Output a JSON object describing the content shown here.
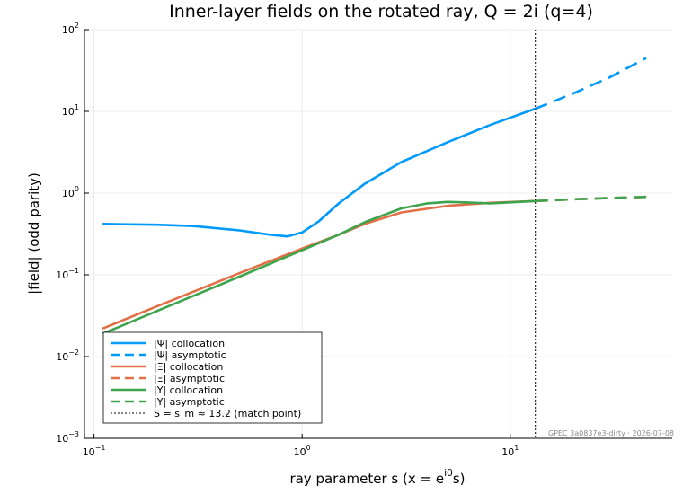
{
  "chart_data": {
    "type": "line",
    "title": "Inner-layer fields on the rotated ray, Q = 2i  (q=4)",
    "xlabel": "ray parameter s   (x = e",
    "xlabel_superscript": "iθ",
    "xlabel_suffix": "s)",
    "ylabel": "|field|  (odd parity)",
    "xscale": "log",
    "yscale": "log",
    "xlim": [
      0.09,
      60
    ],
    "ylim": [
      0.001,
      100
    ],
    "x_ticks": [
      {
        "value": 0.1,
        "base": "10",
        "exp": "−1"
      },
      {
        "value": 1,
        "base": "10",
        "exp": "0"
      },
      {
        "value": 10,
        "base": "10",
        "exp": "1"
      }
    ],
    "y_ticks": [
      {
        "value": 0.001,
        "base": "10",
        "exp": "−3"
      },
      {
        "value": 0.01,
        "base": "10",
        "exp": "−2"
      },
      {
        "value": 0.1,
        "base": "10",
        "exp": "−1"
      },
      {
        "value": 1,
        "base": "10",
        "exp": "0"
      },
      {
        "value": 10,
        "base": "10",
        "exp": "1"
      },
      {
        "value": 100,
        "base": "10",
        "exp": "2"
      }
    ],
    "grid": true,
    "legend_position": "bottom-left",
    "series": [
      {
        "name": "|Ψ|  collocation",
        "color": "#009af9",
        "style": "solid",
        "x": [
          0.11,
          0.15,
          0.2,
          0.3,
          0.5,
          0.7,
          0.85,
          1.0,
          1.2,
          1.5,
          2.0,
          3.0,
          5.0,
          8.0,
          13.2
        ],
        "y": [
          0.42,
          0.415,
          0.41,
          0.395,
          0.35,
          0.31,
          0.295,
          0.33,
          0.45,
          0.75,
          1.3,
          2.4,
          4.2,
          6.8,
          10.8
        ]
      },
      {
        "name": "|Ψ|  asymptotic",
        "color": "#009af9",
        "style": "dashed",
        "x": [
          13.2,
          20,
          30,
          45
        ],
        "y": [
          10.8,
          16.5,
          26,
          45
        ]
      },
      {
        "name": "|Ξ|  collocation",
        "color": "#e26f46",
        "style": "solid",
        "x": [
          0.11,
          0.2,
          0.5,
          1.0,
          1.5,
          2.0,
          3.0,
          5.0,
          8.0,
          13.2
        ],
        "y": [
          0.022,
          0.041,
          0.105,
          0.21,
          0.31,
          0.42,
          0.58,
          0.7,
          0.76,
          0.8
        ]
      },
      {
        "name": "|Ξ|  asymptotic",
        "color": "#e26f46",
        "style": "dashed",
        "x": [
          13.2,
          20,
          30,
          45
        ],
        "y": [
          0.8,
          0.84,
          0.87,
          0.9
        ]
      },
      {
        "name": "|Υ|  collocation",
        "color": "#3da44d",
        "style": "solid",
        "x": [
          0.11,
          0.2,
          0.5,
          1.0,
          1.5,
          2.0,
          3.0,
          4.0,
          5.0,
          6.0,
          8.0,
          13.2
        ],
        "y": [
          0.019,
          0.036,
          0.095,
          0.2,
          0.31,
          0.44,
          0.65,
          0.75,
          0.78,
          0.77,
          0.75,
          0.8
        ]
      },
      {
        "name": "|Υ|  asymptotic",
        "color": "#3da44d",
        "style": "dashed",
        "x": [
          13.2,
          20,
          30,
          45
        ],
        "y": [
          0.8,
          0.84,
          0.87,
          0.9
        ]
      },
      {
        "name": "S = s_m ≈ 13.2  (match point)",
        "color": "#000000",
        "style": "dotted",
        "vline": 13.2
      }
    ],
    "footer": "GPEC 3a0837e3-dirty · 2026-07-08"
  }
}
